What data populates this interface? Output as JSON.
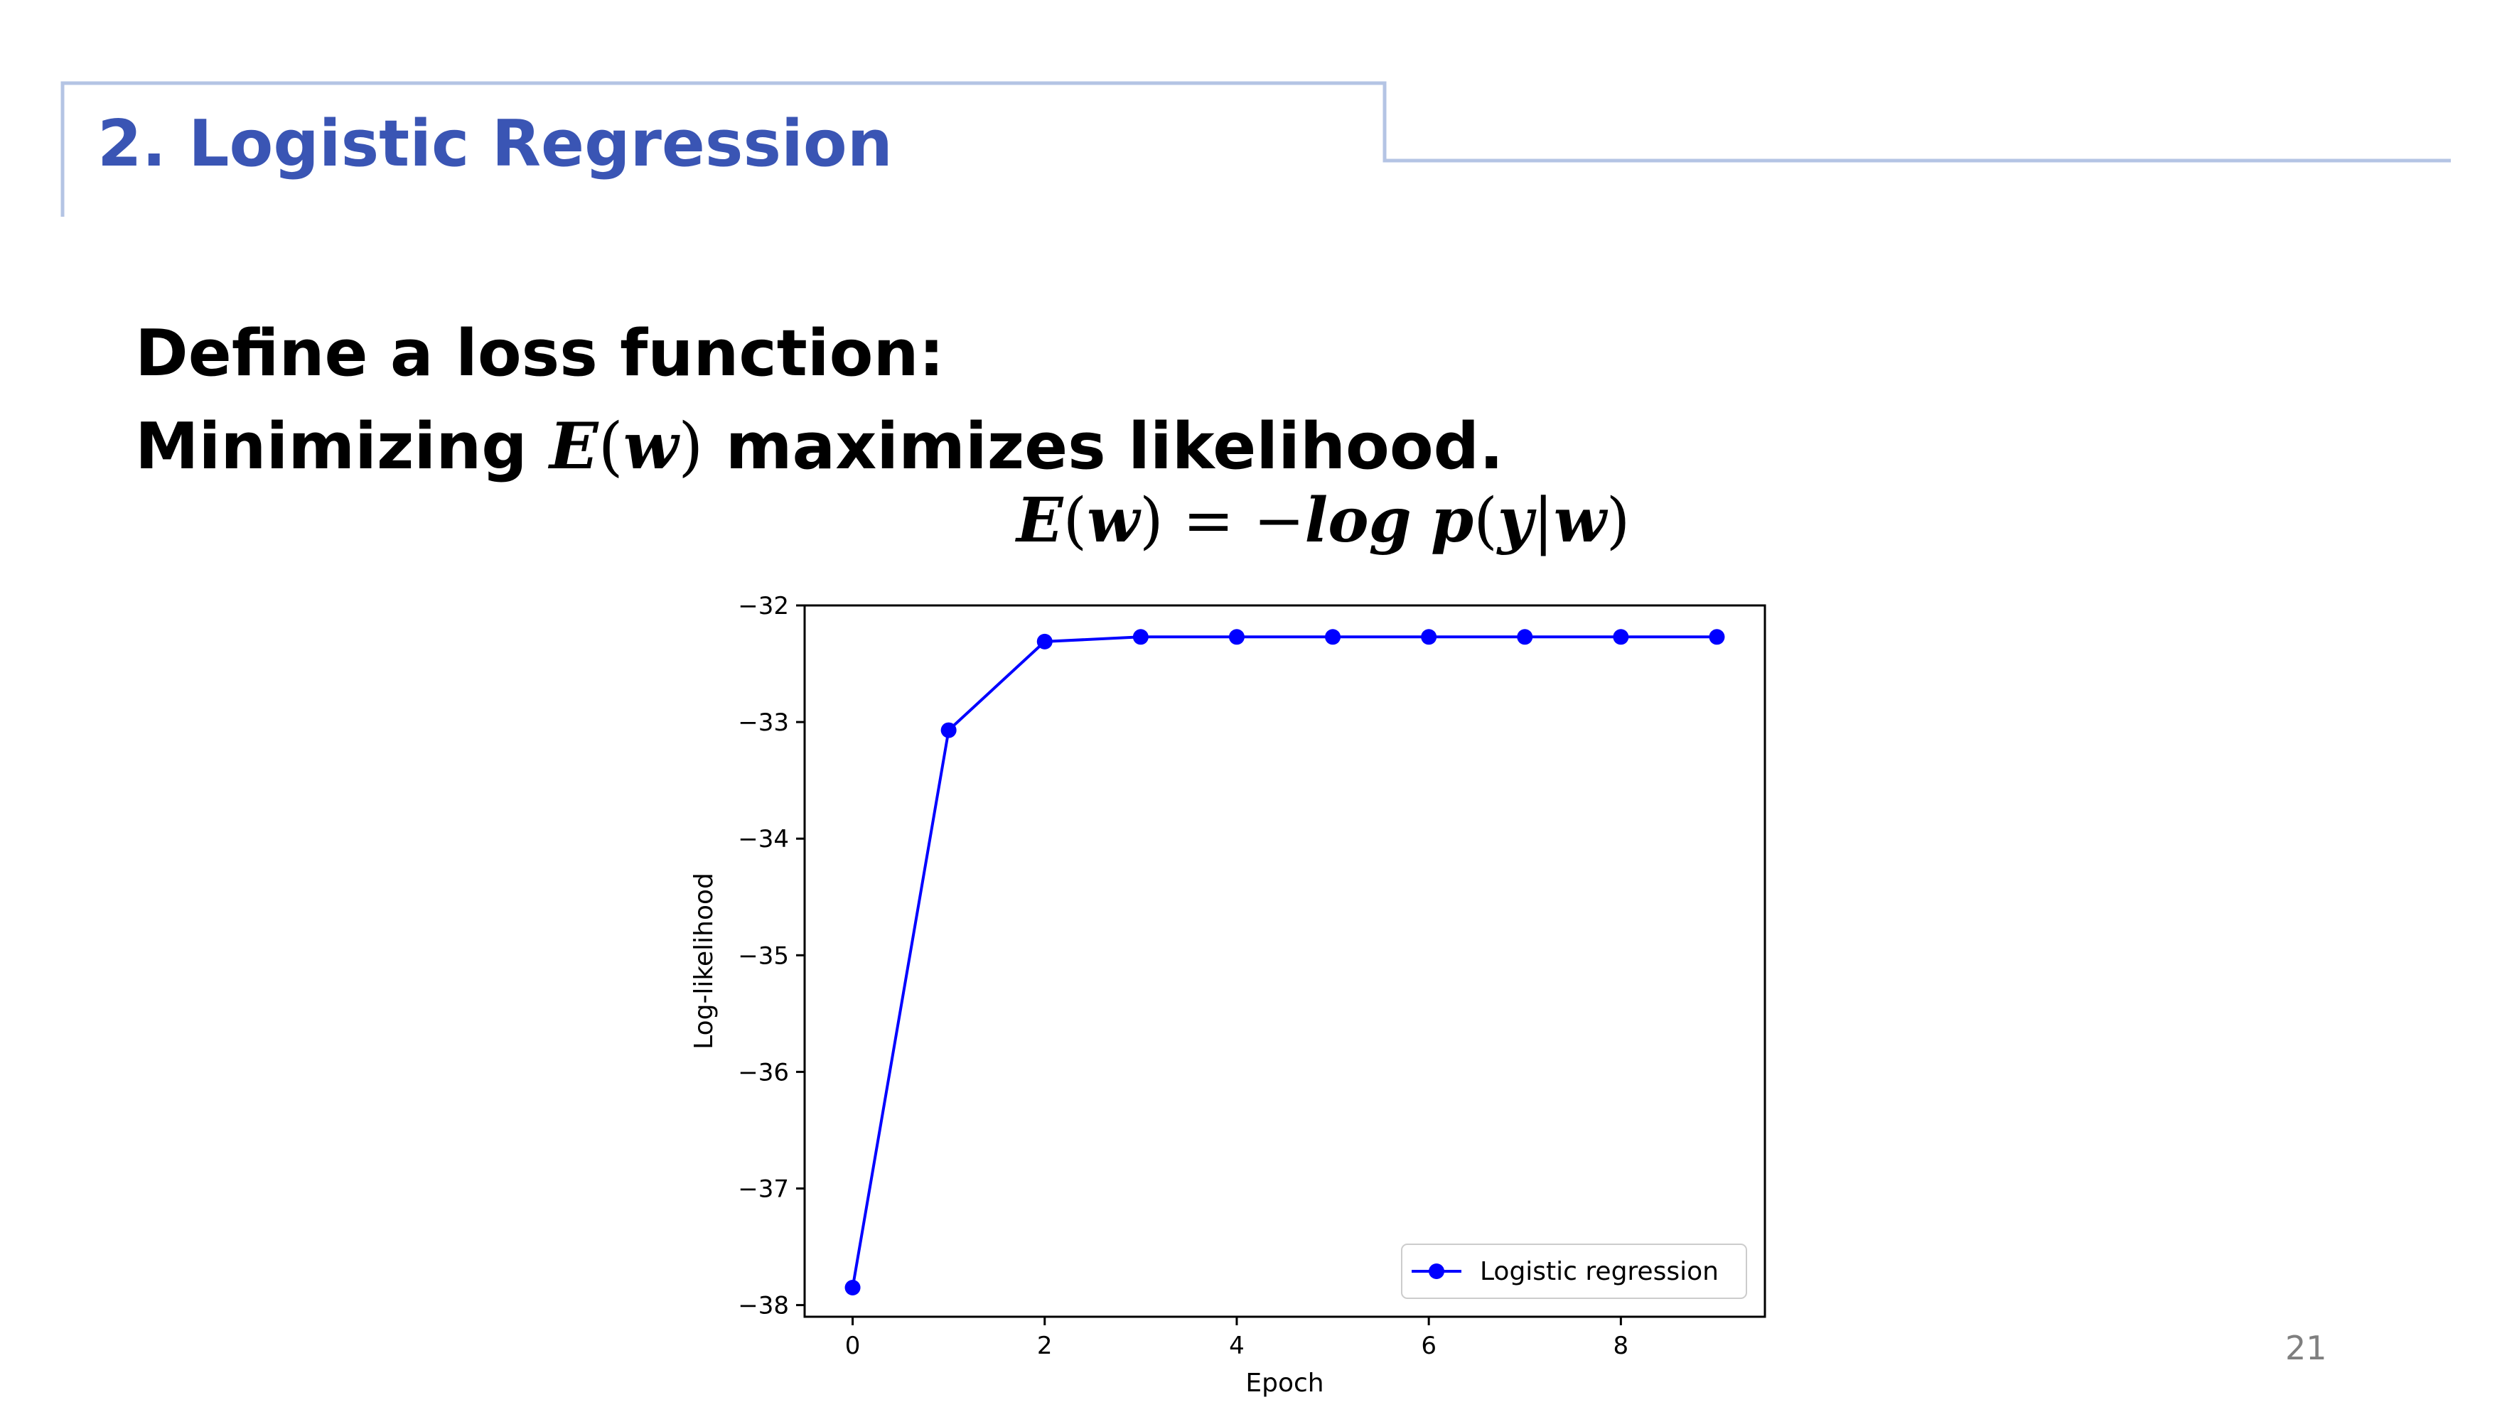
{
  "slide": {
    "title": "2. Logistic Regression",
    "line1": "Define a loss function:",
    "line2_prefix": "Minimizing ",
    "line2_math_E": "E",
    "line2_math_lparen": "(",
    "line2_math_w": "w",
    "line2_math_rparen": ")",
    "line2_suffix": " maximizes likelihood.",
    "formula": {
      "E": "E",
      "lp1": "(",
      "w1": "w",
      "rp1": ")",
      "eq": " = −",
      "log": "log",
      "p": "p",
      "lp2": "(",
      "y": "y",
      "bar": "|",
      "w2": "w",
      "rp2": ")"
    },
    "page_number": "21"
  },
  "colors": {
    "title": "#3a55b4",
    "frame": "#b4c4e4",
    "series": "#0000ff",
    "page_number": "#7f7f7f"
  },
  "chart_data": {
    "type": "line",
    "xlabel": "Epoch",
    "ylabel": "Log-likelihood",
    "xlim": [
      -0.5,
      9.5
    ],
    "ylim": [
      -38.1,
      -32.0
    ],
    "xticks": [
      0,
      2,
      4,
      6,
      8
    ],
    "yticks": [
      -32,
      -33,
      -34,
      -35,
      -36,
      -37,
      -38
    ],
    "xtick_labels": [
      "0",
      "2",
      "4",
      "6",
      "8"
    ],
    "ytick_labels": [
      "−32",
      "−33",
      "−34",
      "−35",
      "−36",
      "−37",
      "−38"
    ],
    "grid": false,
    "legend_position": "lower-right",
    "series": [
      {
        "name": "Logistic regression",
        "marker": "circle",
        "x": [
          0,
          1,
          2,
          3,
          4,
          5,
          6,
          7,
          8,
          9
        ],
        "values": [
          -37.85,
          -33.07,
          -32.31,
          -32.27,
          -32.27,
          -32.27,
          -32.27,
          -32.27,
          -32.27,
          -32.27
        ]
      }
    ]
  }
}
